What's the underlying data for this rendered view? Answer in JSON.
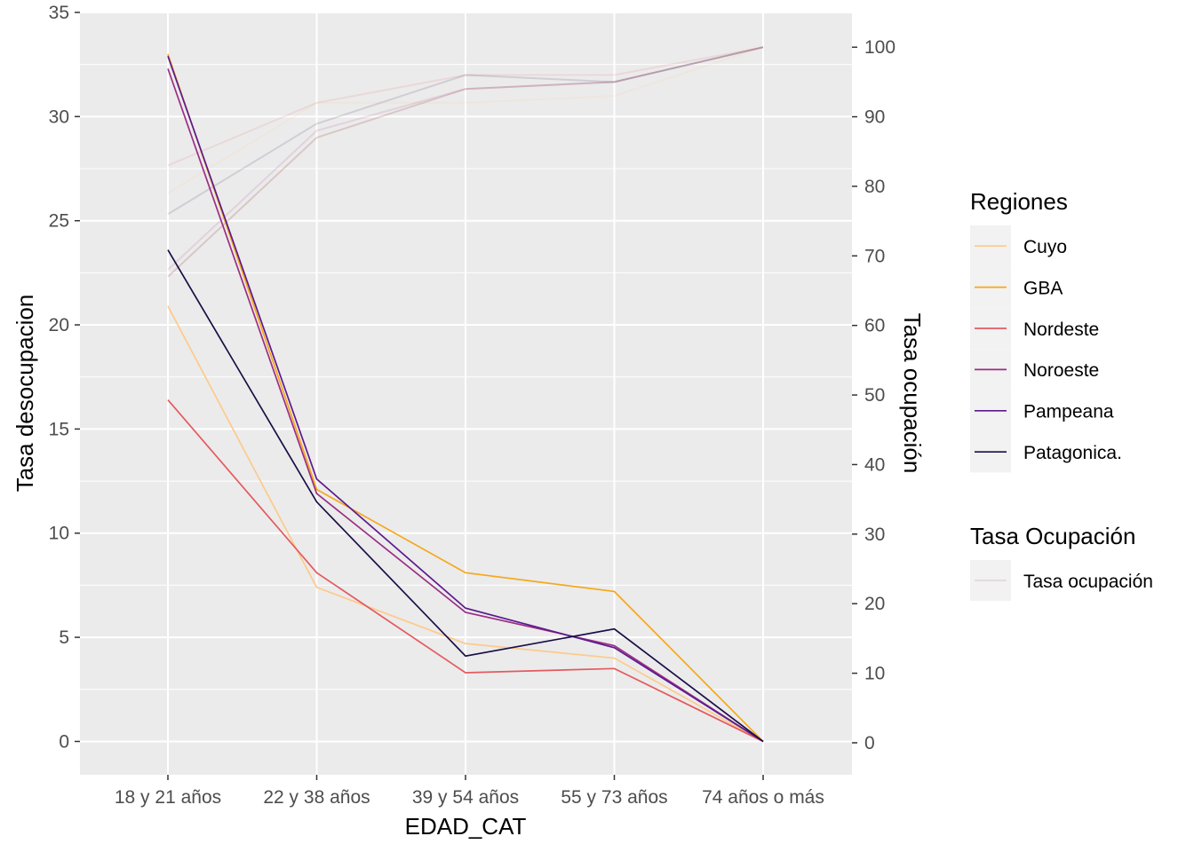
{
  "chart_data": {
    "type": "line",
    "xlabel": "EDAD_CAT",
    "ylabel": "Tasa desocupacion",
    "y2label": "Tasa ocupación",
    "categories": [
      "18 y 21 años",
      "22 y 38 años",
      "39 y 54 años",
      "55 y 73 años",
      "74 años o más"
    ],
    "ylim": [
      -1.6,
      35
    ],
    "yticks": [
      0,
      5,
      10,
      15,
      20,
      25,
      30,
      35
    ],
    "y2lim": [
      -4.6,
      105
    ],
    "y2ticks": [
      0,
      10,
      20,
      30,
      40,
      50,
      60,
      70,
      80,
      90,
      100
    ],
    "grid": true,
    "legend_position": "right",
    "legend_title": "Regiones",
    "series": [
      {
        "name": "Cuyo",
        "color": "#fdca8b",
        "values": [
          20.9,
          7.4,
          4.7,
          4.0,
          0.0
        ]
      },
      {
        "name": "GBA",
        "color": "#f5a81a",
        "values": [
          33.0,
          12.1,
          8.1,
          7.2,
          0.0
        ]
      },
      {
        "name": "Nordeste",
        "color": "#e45a5f",
        "values": [
          16.4,
          8.1,
          3.3,
          3.5,
          0.0
        ]
      },
      {
        "name": "Noroeste",
        "color": "#9b2e84",
        "values": [
          32.3,
          11.9,
          6.2,
          4.6,
          0.0
        ]
      },
      {
        "name": "Pampeana",
        "color": "#5c1a8e",
        "values": [
          32.9,
          12.6,
          6.4,
          4.5,
          0.0
        ]
      },
      {
        "name": "Patagonica.",
        "color": "#1a0e45",
        "values": [
          23.6,
          11.5,
          4.1,
          5.4,
          0.0
        ]
      }
    ],
    "occupation_legend_title": "Tasa Ocupación",
    "occupation_legend_label": "Tasa ocupación",
    "occupation_series": [
      {
        "region": "Cuyo",
        "color": "#fdca8b",
        "values": [
          79,
          92,
          92,
          93,
          100
        ]
      },
      {
        "region": "GBA",
        "color": "#f5a81a",
        "values": [
          67,
          87,
          94,
          95,
          100
        ]
      },
      {
        "region": "Nordeste",
        "color": "#e45a5f",
        "values": [
          83,
          92,
          96,
          96,
          100
        ]
      },
      {
        "region": "Noroeste",
        "color": "#9b2e84",
        "values": [
          68,
          88,
          94,
          95,
          100
        ]
      },
      {
        "region": "Pampeana",
        "color": "#5c1a8e",
        "values": [
          67,
          87,
          94,
          95,
          100
        ]
      },
      {
        "region": "Patagonica.",
        "color": "#1a0e45",
        "values": [
          76,
          89,
          96,
          95,
          100
        ]
      }
    ]
  }
}
